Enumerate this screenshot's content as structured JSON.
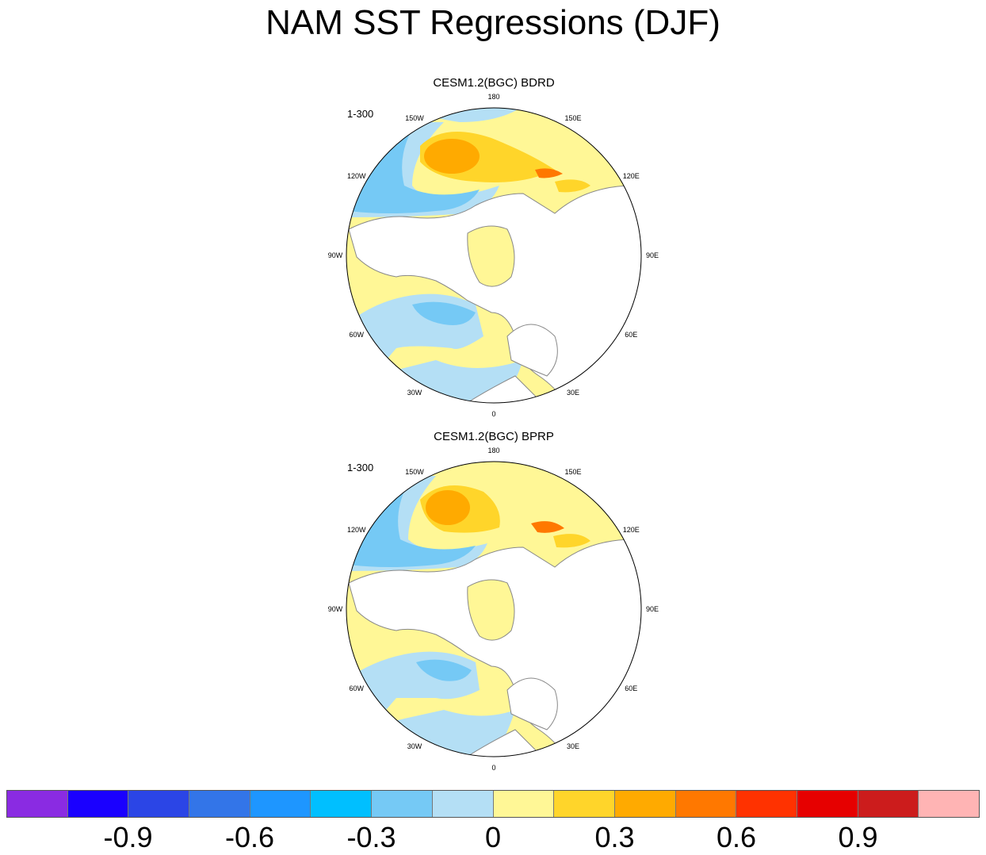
{
  "title": "NAM SST Regressions (DJF)",
  "panels": [
    {
      "title": "CESM1.2(BGC) BDRD",
      "range": "1-300"
    },
    {
      "title": "CESM1.2(BGC) BPRP",
      "range": "1-300"
    }
  ],
  "longitude_labels": [
    "180",
    "150E",
    "120E",
    "90E",
    "60E",
    "30E",
    "0",
    "30W",
    "60W",
    "90W",
    "120W",
    "150W"
  ],
  "colorbar": {
    "colors": [
      "#8a2be2",
      "#1a00ff",
      "#2b45e6",
      "#3375e8",
      "#1e96ff",
      "#00bfff",
      "#75c9f5",
      "#b4dff5",
      "#fff796",
      "#ffd52a",
      "#ffaa00",
      "#ff7800",
      "#ff3200",
      "#e60000",
      "#cc1c1c",
      "#ffb4b4"
    ],
    "labels": [
      "-0.9",
      "-0.6",
      "-0.3",
      "0",
      "0.3",
      "0.6",
      "0.9"
    ]
  }
}
